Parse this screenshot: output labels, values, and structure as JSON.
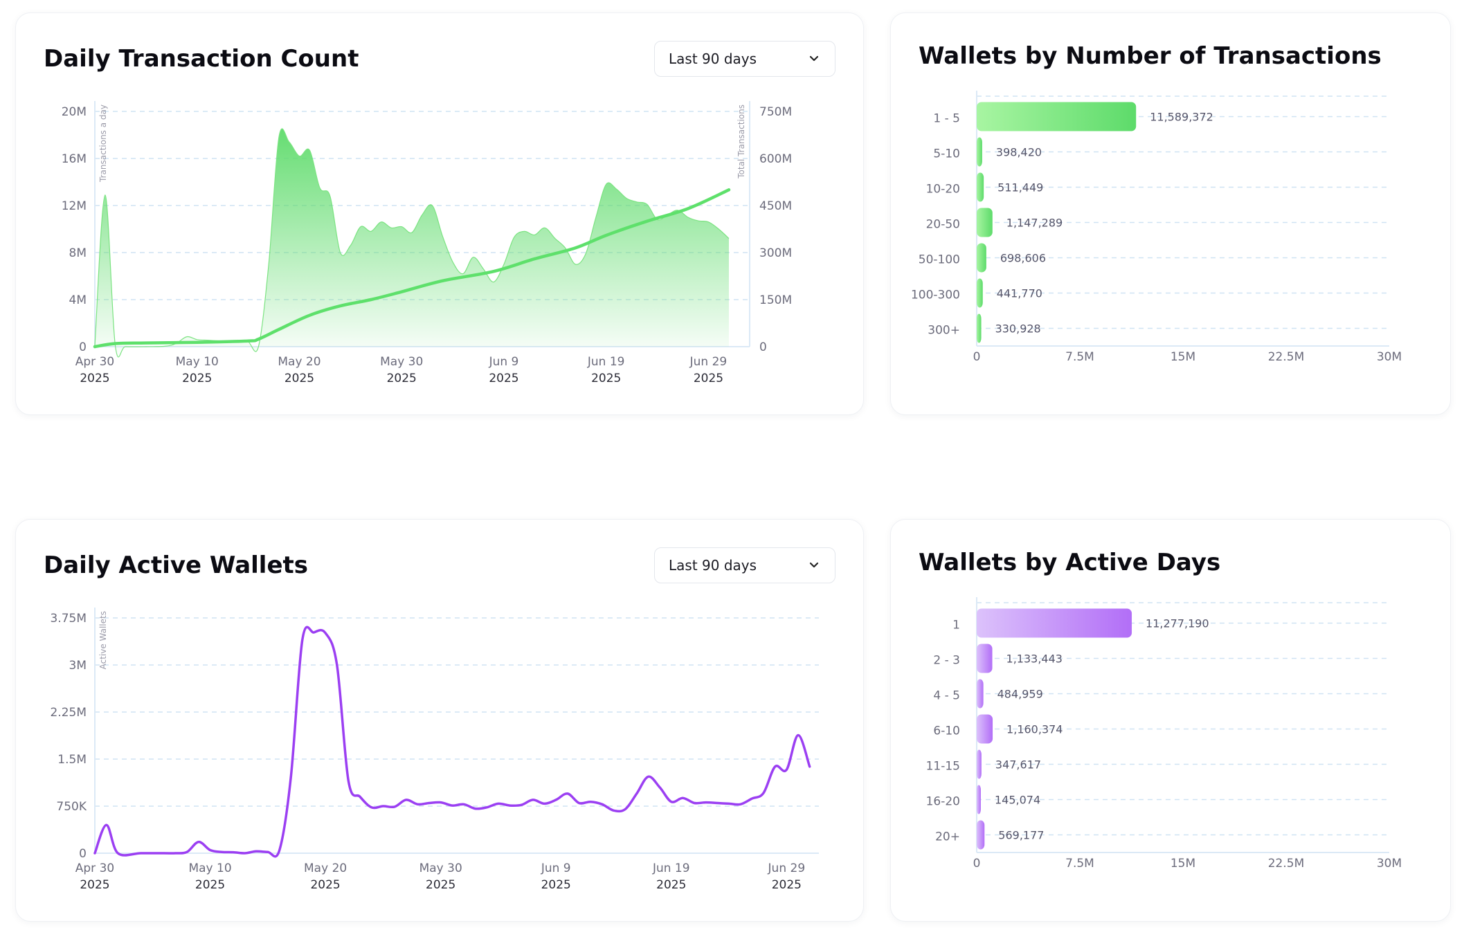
{
  "cards": {
    "tx": {
      "title": "Daily Transaction Count",
      "dropdown": "Last 90 days"
    },
    "wtx": {
      "title": "Wallets by Number of Transactions"
    },
    "aw": {
      "title": "Daily Active Wallets",
      "dropdown": "Last 90 days"
    },
    "wad": {
      "title": "Wallets by Active Days"
    }
  },
  "colors": {
    "green": "#5ddb6a",
    "green_light": "#a8f5a2",
    "purple": "#9b3ff2",
    "purple_light": "#dcc2fb",
    "grid": "#cfe3f3",
    "axis": "#dbe9f6",
    "tick": "#6b6b7b"
  },
  "chart_data": [
    {
      "id": "daily_tx",
      "type": "area",
      "title": "Daily Transaction Count",
      "ylabel": "Transactions a day",
      "y2label": "Total Transactions",
      "ylim": [
        0,
        20000000
      ],
      "y2lim": [
        0,
        750000000
      ],
      "yticks": [
        {
          "v": 0,
          "label": "0"
        },
        {
          "v": 4000000,
          "label": "4M"
        },
        {
          "v": 8000000,
          "label": "8M"
        },
        {
          "v": 12000000,
          "label": "12M"
        },
        {
          "v": 16000000,
          "label": "16M"
        },
        {
          "v": 20000000,
          "label": "20M"
        }
      ],
      "y2ticks": [
        {
          "v": 0,
          "label": "0"
        },
        {
          "v": 150000000,
          "label": "150M"
        },
        {
          "v": 300000000,
          "label": "300M"
        },
        {
          "v": 450000000,
          "label": "450M"
        },
        {
          "v": 600000000,
          "label": "600M"
        },
        {
          "v": 750000000,
          "label": "750M"
        }
      ],
      "xticks": [
        {
          "d": 0,
          "l1": "Apr 30",
          "l2": "2025"
        },
        {
          "d": 10,
          "l1": "May 10",
          "l2": "2025"
        },
        {
          "d": 20,
          "l1": "May 20",
          "l2": "2025"
        },
        {
          "d": 30,
          "l1": "May 30",
          "l2": "2025"
        },
        {
          "d": 40,
          "l1": "Jun 9",
          "l2": "2025"
        },
        {
          "d": 50,
          "l1": "Jun 19",
          "l2": "2025"
        },
        {
          "d": 60,
          "l1": "Jun 29",
          "l2": "2025"
        }
      ],
      "x_range": [
        "2025-04-30",
        "2025-07-01"
      ],
      "grid": true,
      "series": [
        {
          "name": "Transactions a day",
          "style": "area",
          "axis": "left",
          "points": [
            [
              "2025-04-30",
              100000
            ],
            [
              "2025-05-01",
              12900000
            ],
            [
              "2025-05-02",
              100000
            ],
            [
              "2025-05-03",
              0
            ],
            [
              "2025-05-05",
              0
            ],
            [
              "2025-05-07",
              50000
            ],
            [
              "2025-05-08",
              300000
            ],
            [
              "2025-05-09",
              850000
            ],
            [
              "2025-05-10",
              600000
            ],
            [
              "2025-05-11",
              550000
            ],
            [
              "2025-05-12",
              500000
            ],
            [
              "2025-05-13",
              450000
            ],
            [
              "2025-05-14",
              420000
            ],
            [
              "2025-05-15",
              400000
            ],
            [
              "2025-05-16",
              0
            ],
            [
              "2025-05-17",
              7000000
            ],
            [
              "2025-05-18",
              17800000
            ],
            [
              "2025-05-19",
              17400000
            ],
            [
              "2025-05-20",
              16200000
            ],
            [
              "2025-05-21",
              16700000
            ],
            [
              "2025-05-22",
              13500000
            ],
            [
              "2025-05-23",
              12800000
            ],
            [
              "2025-05-24",
              8000000
            ],
            [
              "2025-05-25",
              8600000
            ],
            [
              "2025-05-26",
              10200000
            ],
            [
              "2025-05-27",
              9800000
            ],
            [
              "2025-05-28",
              10600000
            ],
            [
              "2025-05-29",
              10100000
            ],
            [
              "2025-05-30",
              10200000
            ],
            [
              "2025-05-31",
              9700000
            ],
            [
              "2025-06-01",
              11200000
            ],
            [
              "2025-06-02",
              12000000
            ],
            [
              "2025-06-03",
              9400000
            ],
            [
              "2025-06-04",
              7200000
            ],
            [
              "2025-06-05",
              6200000
            ],
            [
              "2025-06-06",
              7600000
            ],
            [
              "2025-06-07",
              6600000
            ],
            [
              "2025-06-08",
              5500000
            ],
            [
              "2025-06-09",
              7000000
            ],
            [
              "2025-06-10",
              9300000
            ],
            [
              "2025-06-11",
              9800000
            ],
            [
              "2025-06-12",
              9500000
            ],
            [
              "2025-06-13",
              10100000
            ],
            [
              "2025-06-14",
              9200000
            ],
            [
              "2025-06-15",
              8400000
            ],
            [
              "2025-06-16",
              7000000
            ],
            [
              "2025-06-17",
              7900000
            ],
            [
              "2025-06-18",
              11000000
            ],
            [
              "2025-06-19",
              13800000
            ],
            [
              "2025-06-20",
              13400000
            ],
            [
              "2025-06-21",
              12600000
            ],
            [
              "2025-06-22",
              12300000
            ],
            [
              "2025-06-23",
              12100000
            ],
            [
              "2025-06-24",
              10800000
            ],
            [
              "2025-06-25",
              11200000
            ],
            [
              "2025-06-26",
              11600000
            ],
            [
              "2025-06-27",
              11000000
            ],
            [
              "2025-06-28",
              10700000
            ],
            [
              "2025-06-29",
              10600000
            ],
            [
              "2025-06-30",
              10000000
            ],
            [
              "2025-07-01",
              9200000
            ]
          ]
        },
        {
          "name": "Total Transactions",
          "style": "line",
          "axis": "right",
          "points": [
            [
              "2025-04-30",
              0
            ],
            [
              "2025-05-02",
              10000000
            ],
            [
              "2025-05-05",
              12000000
            ],
            [
              "2025-05-10",
              14000000
            ],
            [
              "2025-05-15",
              18000000
            ],
            [
              "2025-05-16",
              24000000
            ],
            [
              "2025-05-18",
              55000000
            ],
            [
              "2025-05-21",
              100000000
            ],
            [
              "2025-05-24",
              130000000
            ],
            [
              "2025-05-27",
              150000000
            ],
            [
              "2025-05-30",
              175000000
            ],
            [
              "2025-06-03",
              210000000
            ],
            [
              "2025-06-08",
              240000000
            ],
            [
              "2025-06-12",
              280000000
            ],
            [
              "2025-06-16",
              315000000
            ],
            [
              "2025-06-19",
              355000000
            ],
            [
              "2025-06-23",
              400000000
            ],
            [
              "2025-06-27",
              440000000
            ],
            [
              "2025-07-01",
              500000000
            ]
          ]
        }
      ]
    },
    {
      "id": "wallets_by_tx",
      "type": "bar",
      "title": "Wallets by Number of Transactions",
      "orientation": "horizontal",
      "categories": [
        "1 - 5",
        "5-10",
        "10-20",
        "20-50",
        "50-100",
        "100-300",
        "300+"
      ],
      "values": [
        11589372,
        398420,
        511449,
        1147289,
        698606,
        441770,
        330928
      ],
      "value_labels": [
        "11,589,372",
        "398,420",
        "511,449",
        "1,147,289",
        "698,606",
        "441,770",
        "330,928"
      ],
      "xlim": [
        0,
        30000000
      ],
      "xticks": [
        {
          "v": 0,
          "label": "0"
        },
        {
          "v": 7500000,
          "label": "7.5M"
        },
        {
          "v": 15000000,
          "label": "15M"
        },
        {
          "v": 22500000,
          "label": "22.5M"
        },
        {
          "v": 30000000,
          "label": "30M"
        }
      ],
      "grid": true
    },
    {
      "id": "daily_active_wallets",
      "type": "line",
      "title": "Daily Active Wallets",
      "ylabel": "Active Wallets",
      "ylim": [
        0,
        3750000
      ],
      "yticks": [
        {
          "v": 0,
          "label": "0"
        },
        {
          "v": 750000,
          "label": "750K"
        },
        {
          "v": 1500000,
          "label": "1.5M"
        },
        {
          "v": 2250000,
          "label": "2.25M"
        },
        {
          "v": 3000000,
          "label": "3M"
        },
        {
          "v": 3750000,
          "label": "3.75M"
        }
      ],
      "xticks": [
        {
          "d": 0,
          "l1": "Apr 30",
          "l2": "2025"
        },
        {
          "d": 10,
          "l1": "May 10",
          "l2": "2025"
        },
        {
          "d": 20,
          "l1": "May 20",
          "l2": "2025"
        },
        {
          "d": 30,
          "l1": "May 30",
          "l2": "2025"
        },
        {
          "d": 40,
          "l1": "Jun 9",
          "l2": "2025"
        },
        {
          "d": 50,
          "l1": "Jun 19",
          "l2": "2025"
        },
        {
          "d": 60,
          "l1": "Jun 29",
          "l2": "2025"
        }
      ],
      "x_range": [
        "2025-04-30",
        "2025-06-30"
      ],
      "grid": true,
      "series": [
        {
          "name": "Active Wallets",
          "points": [
            [
              "2025-04-30",
              0
            ],
            [
              "2025-05-01",
              450000
            ],
            [
              "2025-05-02",
              0
            ],
            [
              "2025-05-04",
              0
            ],
            [
              "2025-05-06",
              0
            ],
            [
              "2025-05-07",
              0
            ],
            [
              "2025-05-08",
              20000
            ],
            [
              "2025-05-09",
              180000
            ],
            [
              "2025-05-10",
              50000
            ],
            [
              "2025-05-11",
              20000
            ],
            [
              "2025-05-12",
              15000
            ],
            [
              "2025-05-13",
              0
            ],
            [
              "2025-05-14",
              30000
            ],
            [
              "2025-05-15",
              20000
            ],
            [
              "2025-05-16",
              40000
            ],
            [
              "2025-05-17",
              1200000
            ],
            [
              "2025-05-18",
              3400000
            ],
            [
              "2025-05-19",
              3520000
            ],
            [
              "2025-05-20",
              3510000
            ],
            [
              "2025-05-21",
              3000000
            ],
            [
              "2025-05-22",
              1150000
            ],
            [
              "2025-05-23",
              900000
            ],
            [
              "2025-05-24",
              730000
            ],
            [
              "2025-05-25",
              750000
            ],
            [
              "2025-05-26",
              740000
            ],
            [
              "2025-05-27",
              850000
            ],
            [
              "2025-05-28",
              780000
            ],
            [
              "2025-05-29",
              800000
            ],
            [
              "2025-05-30",
              810000
            ],
            [
              "2025-05-31",
              760000
            ],
            [
              "2025-06-01",
              780000
            ],
            [
              "2025-06-02",
              710000
            ],
            [
              "2025-06-03",
              730000
            ],
            [
              "2025-06-04",
              790000
            ],
            [
              "2025-06-05",
              760000
            ],
            [
              "2025-06-06",
              770000
            ],
            [
              "2025-06-07",
              850000
            ],
            [
              "2025-06-08",
              790000
            ],
            [
              "2025-06-09",
              850000
            ],
            [
              "2025-06-10",
              950000
            ],
            [
              "2025-06-11",
              800000
            ],
            [
              "2025-06-12",
              820000
            ],
            [
              "2025-06-13",
              780000
            ],
            [
              "2025-06-14",
              680000
            ],
            [
              "2025-06-15",
              700000
            ],
            [
              "2025-06-16",
              950000
            ],
            [
              "2025-06-17",
              1220000
            ],
            [
              "2025-06-18",
              1050000
            ],
            [
              "2025-06-19",
              820000
            ],
            [
              "2025-06-20",
              880000
            ],
            [
              "2025-06-21",
              800000
            ],
            [
              "2025-06-22",
              810000
            ],
            [
              "2025-06-23",
              800000
            ],
            [
              "2025-06-24",
              790000
            ],
            [
              "2025-06-25",
              780000
            ],
            [
              "2025-06-26",
              870000
            ],
            [
              "2025-06-27",
              960000
            ],
            [
              "2025-06-28",
              1380000
            ],
            [
              "2025-06-29",
              1330000
            ],
            [
              "2025-06-30",
              1880000
            ],
            [
              "2025-07-01",
              1380000
            ]
          ]
        }
      ]
    },
    {
      "id": "wallets_by_active_days",
      "type": "bar",
      "title": "Wallets by Active Days",
      "orientation": "horizontal",
      "categories": [
        "1",
        "2 - 3",
        "4 - 5",
        "6-10",
        "11-15",
        "16-20",
        "20+"
      ],
      "values": [
        11277190,
        1133443,
        484959,
        1160374,
        347617,
        145074,
        569177
      ],
      "value_labels": [
        "11,277,190",
        "1,133,443",
        "484,959",
        "1,160,374",
        "347,617",
        "145,074",
        "569,177"
      ],
      "xlim": [
        0,
        30000000
      ],
      "xticks": [
        {
          "v": 0,
          "label": "0"
        },
        {
          "v": 7500000,
          "label": "7.5M"
        },
        {
          "v": 15000000,
          "label": "15M"
        },
        {
          "v": 22500000,
          "label": "22.5M"
        },
        {
          "v": 30000000,
          "label": "30M"
        }
      ],
      "grid": true
    }
  ]
}
